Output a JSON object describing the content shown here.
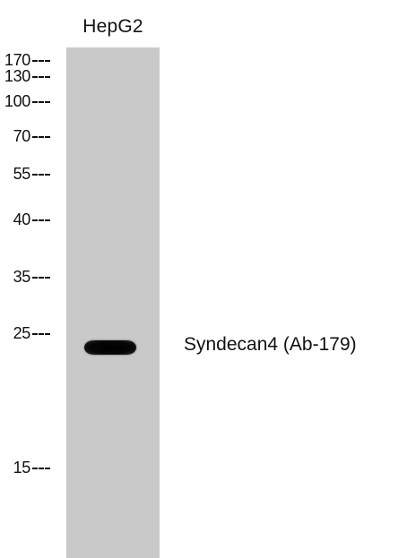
{
  "sample": {
    "label": "HepG2"
  },
  "markers": [
    "170",
    "130",
    "100",
    "70",
    "55",
    "40",
    "35",
    "25",
    "15"
  ],
  "band": {
    "label": "Syndecan4 (Ab-179)"
  }
}
